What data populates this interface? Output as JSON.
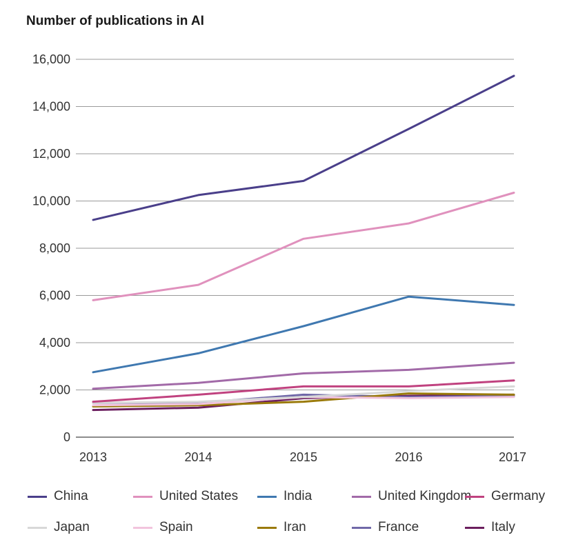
{
  "chart_data": {
    "type": "line",
    "title": "Number of publications in AI",
    "xlabel": "",
    "ylabel": "",
    "x": [
      2013,
      2014,
      2015,
      2016,
      2017
    ],
    "x_tick_labels": [
      "2013",
      "2014",
      "2015",
      "2016",
      "2017"
    ],
    "ylim": [
      0,
      16000
    ],
    "y_ticks": [
      0,
      2000,
      4000,
      6000,
      8000,
      10000,
      12000,
      14000,
      16000
    ],
    "y_tick_labels": [
      "0",
      "2,000",
      "4,000",
      "6,000",
      "8,000",
      "10,000",
      "12,000",
      "14,000",
      "16,000"
    ],
    "grid": "horizontal",
    "legend_position": "bottom",
    "series": [
      {
        "name": "China",
        "color": "#4a3f8a",
        "values": [
          9200,
          10250,
          10850,
          13050,
          15300
        ]
      },
      {
        "name": "United States",
        "color": "#e091bd",
        "values": [
          5800,
          6450,
          8400,
          9050,
          10350
        ]
      },
      {
        "name": "India",
        "color": "#3f78b0",
        "values": [
          2750,
          3550,
          4700,
          5950,
          5600
        ]
      },
      {
        "name": "United Kingdom",
        "color": "#a26aa8",
        "values": [
          2050,
          2300,
          2700,
          2850,
          3150
        ]
      },
      {
        "name": "Germany",
        "color": "#c0427f",
        "values": [
          1500,
          1800,
          2150,
          2150,
          2400
        ]
      },
      {
        "name": "Japan",
        "color": "#d8d8d8",
        "values": [
          1450,
          1500,
          1700,
          1950,
          2150
        ]
      },
      {
        "name": "Spain",
        "color": "#f2c4dd",
        "values": [
          1350,
          1400,
          1700,
          1650,
          1700
        ]
      },
      {
        "name": "Iran",
        "color": "#9a7a0a",
        "values": [
          1300,
          1350,
          1500,
          1850,
          1800
        ]
      },
      {
        "name": "France",
        "color": "#7068a8",
        "values": [
          1450,
          1450,
          1800,
          1700,
          1750
        ]
      },
      {
        "name": "Italy",
        "color": "#6b1e5e",
        "values": [
          1150,
          1250,
          1650,
          1750,
          1800
        ]
      }
    ]
  }
}
